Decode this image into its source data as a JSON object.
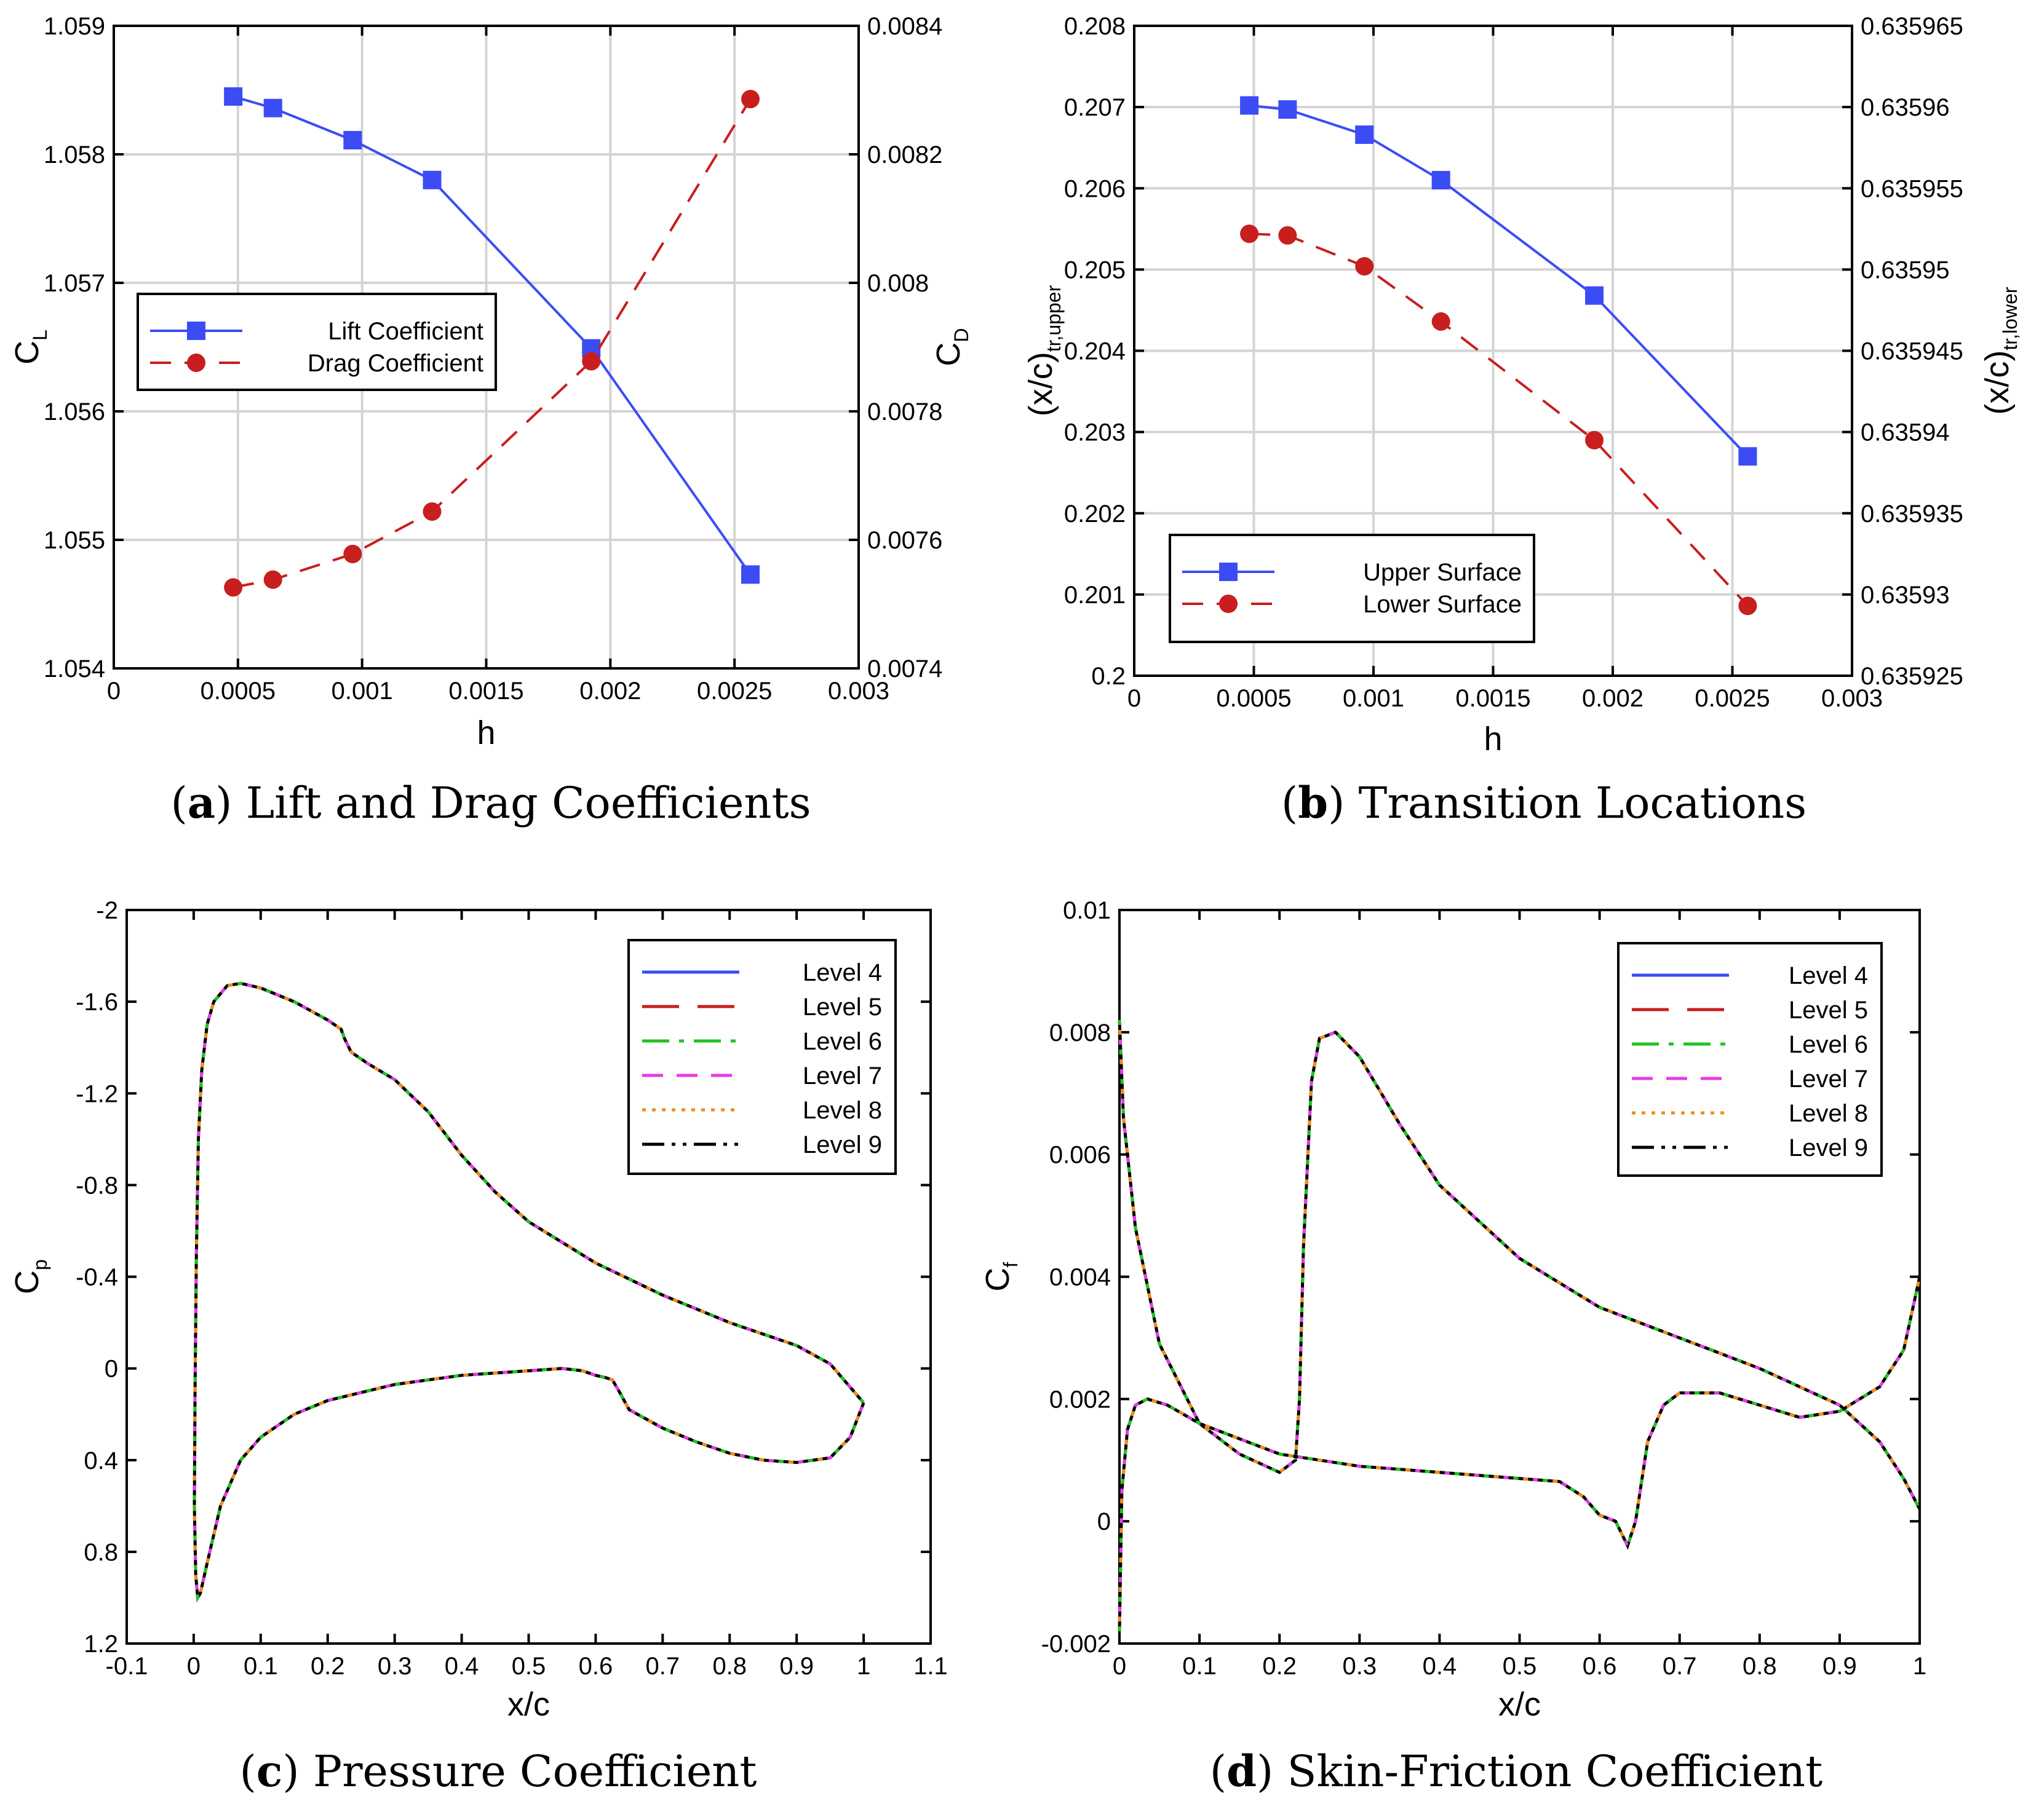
{
  "chart_data": [
    {
      "id": "a",
      "type": "line",
      "caption_letter": "a",
      "caption_text": "Lift and Drag Coefficients",
      "xlabel": "h",
      "ylabel_main": "C",
      "ylabel_sub": "L",
      "y2label_main": "C",
      "y2label_sub": "D",
      "xlim": [
        0,
        0.003
      ],
      "ylim": [
        1.054,
        1.059
      ],
      "y2lim": [
        0.0074,
        0.0084
      ],
      "xticks": [
        "0",
        "0.0005",
        "0.001",
        "0.0015",
        "0.002",
        "0.0025",
        "0.003"
      ],
      "yticks": [
        "1.054",
        "1.055",
        "1.056",
        "1.057",
        "1.058",
        "1.059"
      ],
      "y2ticks": [
        "0.0074",
        "0.0076",
        "0.0078",
        "0.008",
        "0.0082",
        "0.0084"
      ],
      "grid": true,
      "legend_position": "center-left",
      "series": [
        {
          "name": "Lift Coefficient",
          "axis": "left",
          "color": "#3b4cf5",
          "dash": "solid",
          "marker": "square",
          "x": [
            0.000481,
            0.000641,
            0.000962,
            0.001282,
            0.001923,
            0.002564
          ],
          "y": [
            1.05845,
            1.05836,
            1.05811,
            1.0578,
            1.05649,
            1.05473
          ]
        },
        {
          "name": "Drag Coefficient",
          "axis": "right",
          "color": "#c81e1e",
          "dash": "dashed",
          "marker": "circle",
          "x": [
            0.000481,
            0.000641,
            0.000962,
            0.001282,
            0.001923,
            0.002564
          ],
          "y": [
            0.007526,
            0.007538,
            0.007578,
            0.007644,
            0.007878,
            0.008286
          ]
        }
      ]
    },
    {
      "id": "b",
      "type": "line",
      "caption_letter": "b",
      "caption_text": "Transition Locations",
      "xlabel": "h",
      "ylabel_main": "(x/c)",
      "ylabel_sub": "tr,upper",
      "y2label_main": "(x/c)",
      "y2label_sub": "tr,lower",
      "xlim": [
        0,
        0.003
      ],
      "ylim": [
        0.2,
        0.208
      ],
      "y2lim": [
        0.635925,
        0.635965
      ],
      "xticks": [
        "0",
        "0.0005",
        "0.001",
        "0.0015",
        "0.002",
        "0.0025",
        "0.003"
      ],
      "yticks": [
        "0.2",
        "0.201",
        "0.202",
        "0.203",
        "0.204",
        "0.205",
        "0.206",
        "0.207",
        "0.208"
      ],
      "y2ticks": [
        "0.635925",
        "0.63593",
        "0.635935",
        "0.63594",
        "0.635945",
        "0.63595",
        "0.635955",
        "0.63596",
        "0.635965"
      ],
      "grid": true,
      "legend_position": "bottom-left",
      "series": [
        {
          "name": "Upper Surface",
          "axis": "left",
          "color": "#3b4cf5",
          "dash": "solid",
          "marker": "square",
          "x": [
            0.000481,
            0.000641,
            0.000962,
            0.001282,
            0.001923,
            0.002564
          ],
          "y": [
            0.20702,
            0.20697,
            0.20666,
            0.2061,
            0.20468,
            0.2027
          ]
        },
        {
          "name": "Lower Surface",
          "axis": "right",
          "color": "#c81e1e",
          "dash": "dashed",
          "marker": "circle",
          "x": [
            0.000481,
            0.000641,
            0.000962,
            0.001282,
            0.001923,
            0.002564
          ],
          "y": [
            0.6359522,
            0.6359521,
            0.6359502,
            0.6359468,
            0.6359395,
            0.6359293
          ]
        }
      ]
    },
    {
      "id": "c",
      "type": "line",
      "caption_letter": "c",
      "caption_text": "Pressure Coefficient",
      "xlabel": "x/c",
      "ylabel_main": "C",
      "ylabel_sub": "p",
      "xlim": [
        -0.1,
        1.1
      ],
      "ylim": [
        1.2,
        -2.0
      ],
      "xticks": [
        "-0.1",
        "0",
        "0.1",
        "0.2",
        "0.3",
        "0.4",
        "0.5",
        "0.6",
        "0.7",
        "0.8",
        "0.9",
        "1",
        "1.1"
      ],
      "yticks": [
        "1.2",
        "0.8",
        "0.4",
        "0",
        "-0.4",
        "-0.8",
        "-1.2",
        "-1.6",
        "-2"
      ],
      "grid": false,
      "legend_position": "top-right",
      "legend": [
        {
          "name": "Level 4",
          "color": "#3b4cf5",
          "dash": "solid"
        },
        {
          "name": "Level 5",
          "color": "#c81e1e",
          "dash": "long-dash"
        },
        {
          "name": "Level 6",
          "color": "#22c322",
          "dash": "dash-dot"
        },
        {
          "name": "Level 7",
          "color": "#e63ce6",
          "dash": "dashed"
        },
        {
          "name": "Level 8",
          "color": "#f08c1e",
          "dash": "dotted"
        },
        {
          "name": "Level 9",
          "color": "#000000",
          "dash": "dash-dot-dot"
        }
      ],
      "curves": {
        "upper": {
          "x": [
            1.0,
            0.95,
            0.9,
            0.85,
            0.8,
            0.7,
            0.6,
            0.5,
            0.45,
            0.4,
            0.35,
            0.3,
            0.26,
            0.235,
            0.225,
            0.22,
            0.2,
            0.15,
            0.1,
            0.07,
            0.05,
            0.03,
            0.02,
            0.012,
            0.007,
            0.004,
            0.002,
            0.001
          ],
          "y": [
            0.15,
            -0.02,
            -0.1,
            -0.15,
            -0.2,
            -0.32,
            -0.46,
            -0.64,
            -0.77,
            -0.93,
            -1.12,
            -1.26,
            -1.33,
            -1.38,
            -1.44,
            -1.48,
            -1.52,
            -1.6,
            -1.66,
            -1.68,
            -1.67,
            -1.6,
            -1.5,
            -1.3,
            -1.0,
            -0.5,
            0.1,
            0.6
          ]
        },
        "lower": {
          "x": [
            0.001,
            0.003,
            0.006,
            0.01,
            0.02,
            0.04,
            0.07,
            0.1,
            0.15,
            0.2,
            0.3,
            0.4,
            0.5,
            0.55,
            0.58,
            0.6,
            0.615,
            0.625,
            0.635,
            0.65,
            0.7,
            0.75,
            0.8,
            0.85,
            0.9,
            0.95,
            0.98,
            1.0
          ],
          "y": [
            0.6,
            0.9,
            1.0,
            0.98,
            0.85,
            0.6,
            0.4,
            0.3,
            0.2,
            0.14,
            0.07,
            0.03,
            0.01,
            0.0,
            0.01,
            0.03,
            0.04,
            0.05,
            0.1,
            0.18,
            0.26,
            0.32,
            0.37,
            0.4,
            0.41,
            0.39,
            0.3,
            0.15
          ]
        }
      }
    },
    {
      "id": "d",
      "type": "line",
      "caption_letter": "d",
      "caption_text": "Skin-Friction Coefficient",
      "xlabel": "x/c",
      "ylabel_main": "C",
      "ylabel_sub": "f",
      "xlim": [
        0,
        1
      ],
      "ylim": [
        -0.002,
        0.01
      ],
      "xticks": [
        "0",
        "0.1",
        "0.2",
        "0.3",
        "0.4",
        "0.5",
        "0.6",
        "0.7",
        "0.8",
        "0.9",
        "1"
      ],
      "yticks": [
        "-0.002",
        "0",
        "0.002",
        "0.004",
        "0.006",
        "0.008",
        "0.01"
      ],
      "grid": false,
      "legend_position": "top-right",
      "legend": [
        {
          "name": "Level 4",
          "color": "#3b4cf5",
          "dash": "solid"
        },
        {
          "name": "Level 5",
          "color": "#c81e1e",
          "dash": "long-dash"
        },
        {
          "name": "Level 6",
          "color": "#22c322",
          "dash": "dash-dot"
        },
        {
          "name": "Level 7",
          "color": "#e63ce6",
          "dash": "dashed"
        },
        {
          "name": "Level 8",
          "color": "#f08c1e",
          "dash": "dotted"
        },
        {
          "name": "Level 9",
          "color": "#000000",
          "dash": "dash-dot-dot"
        }
      ],
      "curves": {
        "upper": {
          "x": [
            0.0,
            0.005,
            0.02,
            0.05,
            0.1,
            0.15,
            0.2,
            0.22,
            0.225,
            0.23,
            0.24,
            0.25,
            0.27,
            0.3,
            0.35,
            0.4,
            0.5,
            0.6,
            0.7,
            0.8,
            0.9,
            0.95,
            0.98,
            1.0
          ],
          "y": [
            0.0082,
            0.0066,
            0.0048,
            0.0029,
            0.0016,
            0.0011,
            0.0008,
            0.001,
            0.002,
            0.0045,
            0.0072,
            0.0079,
            0.008,
            0.0076,
            0.0065,
            0.0055,
            0.0043,
            0.0035,
            0.003,
            0.0025,
            0.0019,
            0.0013,
            0.0007,
            0.0002
          ]
        },
        "lower": {
          "x": [
            0.0,
            0.003,
            0.01,
            0.02,
            0.035,
            0.06,
            0.1,
            0.2,
            0.3,
            0.4,
            0.5,
            0.55,
            0.58,
            0.6,
            0.62,
            0.635,
            0.645,
            0.66,
            0.68,
            0.7,
            0.75,
            0.8,
            0.85,
            0.9,
            0.95,
            0.98,
            1.0
          ],
          "y": [
            -0.0018,
            0.0005,
            0.0015,
            0.0019,
            0.002,
            0.0019,
            0.0016,
            0.0011,
            0.0009,
            0.0008,
            0.0007,
            0.00065,
            0.0004,
            0.0001,
            0.0,
            -0.0004,
            0.0,
            0.0013,
            0.0019,
            0.0021,
            0.0021,
            0.0019,
            0.0017,
            0.0018,
            0.0022,
            0.0028,
            0.004
          ]
        }
      }
    }
  ]
}
